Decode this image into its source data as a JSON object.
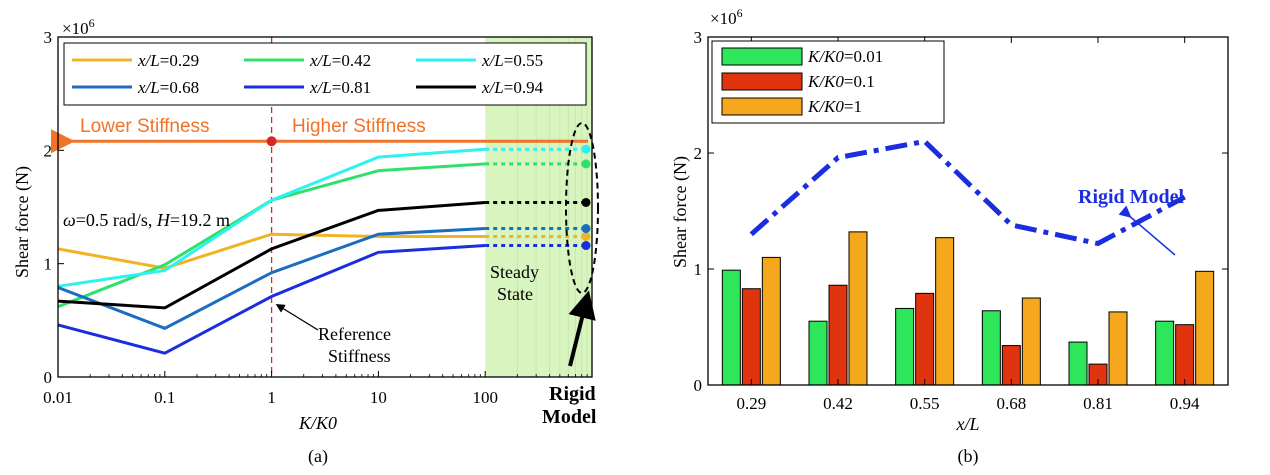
{
  "chart_data": [
    {
      "type": "line",
      "caption": "(a)",
      "xlabel": "K/K0",
      "ylabel": "Shear force (N)",
      "y_multiplier": "×10",
      "y_multiplier_exp": "6",
      "x_scale": "log",
      "xlim": [
        0.01,
        1000
      ],
      "ylim": [
        0,
        3
      ],
      "x_ticks": [
        0.01,
        0.1,
        1,
        10,
        100
      ],
      "x_tick_labels": [
        "0.01",
        "0.1",
        "1",
        "10",
        "100"
      ],
      "y_ticks": [
        0,
        1,
        2,
        3
      ],
      "y_tick_labels": [
        "0",
        "1",
        "2",
        "3"
      ],
      "x": [
        0.01,
        0.1,
        1,
        10,
        100
      ],
      "legend_placement": "top",
      "series": [
        {
          "name": "x/L=0.29",
          "name_var": "x/L",
          "name_val": "=0.29",
          "color": "#f0b323",
          "values": [
            1.13,
            0.96,
            1.26,
            1.24,
            1.24
          ],
          "rigid": 1.24
        },
        {
          "name": "x/L=0.42",
          "name_var": "x/L",
          "name_val": "=0.42",
          "color": "#2fe06a",
          "values": [
            0.62,
            0.99,
            1.56,
            1.82,
            1.88
          ],
          "rigid": 1.88
        },
        {
          "name": "x/L=0.55",
          "name_var": "x/L",
          "name_val": "=0.55",
          "color": "#2ef2f2",
          "values": [
            0.8,
            0.94,
            1.56,
            1.94,
            2.01
          ],
          "rigid": 2.01
        },
        {
          "name": "x/L=0.68",
          "name_var": "x/L",
          "name_val": "=0.68",
          "color": "#1c6cc0",
          "values": [
            0.79,
            0.43,
            0.92,
            1.26,
            1.31
          ],
          "rigid": 1.31
        },
        {
          "name": "x/L=0.81",
          "name_var": "x/L",
          "name_val": "=0.81",
          "color": "#1a2ee0",
          "values": [
            0.46,
            0.21,
            0.71,
            1.1,
            1.16
          ],
          "rigid": 1.16
        },
        {
          "name": "x/L=0.94",
          "name_var": "x/L",
          "name_val": "=0.94",
          "color": "#000000",
          "values": [
            0.67,
            0.61,
            1.13,
            1.47,
            1.54
          ],
          "rigid": 1.54
        }
      ],
      "annotations": {
        "lower_stiffness": "Lower Stiffness",
        "higher_stiffness": "Higher Stiffness",
        "omega_sym": "ω",
        "omega_val": "=0.5 rad/s, ",
        "height_sym": "H",
        "height_val": "=19.2 m",
        "reference_line1": "Reference",
        "reference_line2": "Stiffness",
        "steady_line1": "Steady",
        "steady_line2": "State",
        "rigid_line1": "Rigid",
        "rigid_line2": "Model"
      },
      "colors": {
        "stiffness_arrow": "#f07328",
        "steady_region": "#d8f5c0",
        "reference_line": "#d62828"
      }
    },
    {
      "type": "bar",
      "caption": "(b)",
      "xlabel": "x/L",
      "ylabel": "Shear force (N)",
      "y_multiplier": "×10",
      "y_multiplier_exp": "6",
      "ylim": [
        0,
        3
      ],
      "y_ticks": [
        0,
        1,
        2,
        3
      ],
      "y_tick_labels": [
        "0",
        "1",
        "2",
        "3"
      ],
      "categories": [
        "0.29",
        "0.42",
        "0.55",
        "0.68",
        "0.81",
        "0.94"
      ],
      "legend_placement": "top-left",
      "series": [
        {
          "name": "K/K0=0.01",
          "name_var": "K/K0",
          "name_val": "=0.01",
          "color": "#2ee65a",
          "values": [
            0.99,
            0.55,
            0.66,
            0.64,
            0.37,
            0.55
          ]
        },
        {
          "name": "K/K0=0.1",
          "name_var": "K/K0",
          "name_val": "=0.1",
          "color": "#e0340f",
          "values": [
            0.83,
            0.86,
            0.79,
            0.34,
            0.18,
            0.52
          ]
        },
        {
          "name": "K/K0=1",
          "name_var": "K/K0",
          "name_val": "=1",
          "color": "#f5a81c",
          "values": [
            1.1,
            1.32,
            1.27,
            0.75,
            0.63,
            0.98
          ]
        }
      ],
      "rigid_model": {
        "label": "Rigid Model",
        "color": "#1a2ee0",
        "values": [
          1.3,
          1.96,
          2.1,
          1.38,
          1.22,
          1.62
        ]
      }
    }
  ]
}
